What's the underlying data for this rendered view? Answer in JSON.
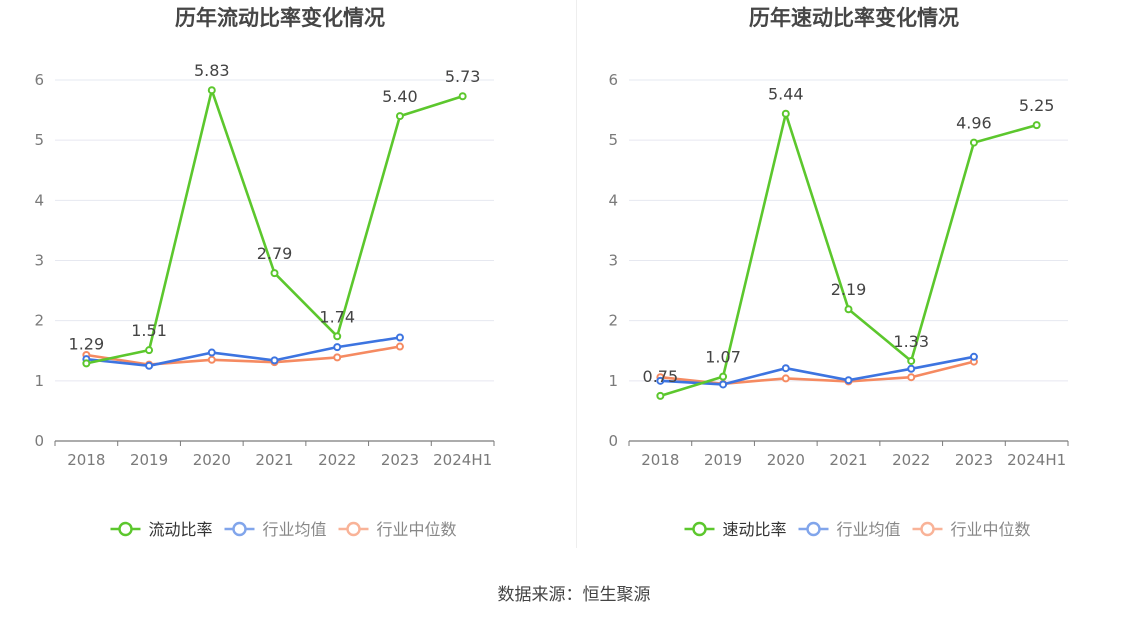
{
  "chart_data": [
    {
      "type": "line",
      "title": "历年流动比率变化情况",
      "categories": [
        "2018",
        "2019",
        "2020",
        "2021",
        "2022",
        "2023",
        "2024H1"
      ],
      "ylim": [
        0,
        6
      ],
      "yticks": [
        "0",
        "1",
        "2",
        "3",
        "4",
        "5",
        "6"
      ],
      "grid": true,
      "legend_position": "bottom",
      "series": [
        {
          "name": "流动比率",
          "color": "#5cc72d",
          "values": [
            1.29,
            1.51,
            5.83,
            2.79,
            1.74,
            5.4,
            5.73
          ],
          "labels": [
            "1.29",
            "1.51",
            "5.83",
            "2.79",
            "1.74",
            "5.40",
            "5.73"
          ]
        },
        {
          "name": "行业均值",
          "color": "#3d74e0",
          "values": [
            1.36,
            1.25,
            1.47,
            1.34,
            1.56,
            1.72,
            null
          ]
        },
        {
          "name": "行业中位数",
          "color": "#f58a61",
          "values": [
            1.43,
            1.27,
            1.35,
            1.31,
            1.39,
            1.57,
            null
          ]
        }
      ]
    },
    {
      "type": "line",
      "title": "历年速动比率变化情况",
      "categories": [
        "2018",
        "2019",
        "2020",
        "2021",
        "2022",
        "2023",
        "2024H1"
      ],
      "ylim": [
        0,
        6
      ],
      "yticks": [
        "0",
        "1",
        "2",
        "3",
        "4",
        "5",
        "6"
      ],
      "grid": true,
      "legend_position": "bottom",
      "series": [
        {
          "name": "速动比率",
          "color": "#5cc72d",
          "values": [
            0.75,
            1.07,
            5.44,
            2.19,
            1.33,
            4.96,
            5.25
          ],
          "labels": [
            "0.75",
            "1.07",
            "5.44",
            "2.19",
            "1.33",
            "4.96",
            "5.25"
          ]
        },
        {
          "name": "行业均值",
          "color": "#3d74e0",
          "values": [
            1.0,
            0.94,
            1.21,
            1.01,
            1.2,
            1.4,
            null
          ]
        },
        {
          "name": "行业中位数",
          "color": "#f58a61",
          "values": [
            1.06,
            0.95,
            1.04,
            0.99,
            1.06,
            1.32,
            null
          ]
        }
      ]
    }
  ],
  "source": "数据来源：恒生聚源"
}
